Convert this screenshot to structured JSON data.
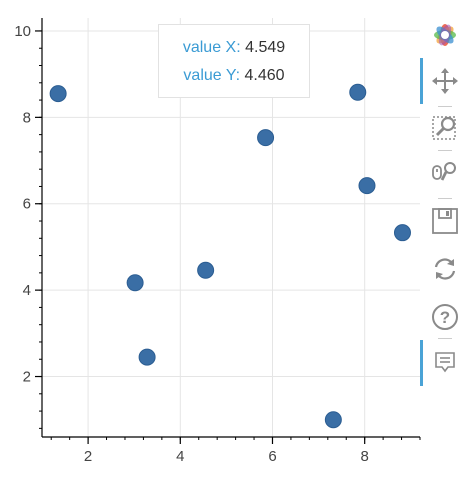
{
  "chart_data": {
    "type": "scatter",
    "title": "",
    "xlabel": "",
    "ylabel": "",
    "xlim": [
      1.0,
      9.2
    ],
    "ylim": [
      0.6,
      10.3
    ],
    "x_ticks": [
      2,
      4,
      6,
      8
    ],
    "y_ticks": [
      2,
      4,
      6,
      8,
      10
    ],
    "grid": true,
    "points": [
      {
        "x": 1.35,
        "y": 8.55
      },
      {
        "x": 3.02,
        "y": 4.17
      },
      {
        "x": 3.28,
        "y": 2.45
      },
      {
        "x": 4.55,
        "y": 4.46
      },
      {
        "x": 5.85,
        "y": 7.53
      },
      {
        "x": 7.32,
        "y": 1.0
      },
      {
        "x": 7.85,
        "y": 8.58
      },
      {
        "x": 8.05,
        "y": 6.42
      },
      {
        "x": 8.82,
        "y": 5.33
      }
    ],
    "point_color": "#3a6ea5"
  },
  "tooltip": {
    "x_label": "value X:",
    "x_value": "4.549",
    "y_label": "value Y:",
    "y_value": "4.460"
  },
  "toolbar": {
    "tools": [
      {
        "name": "bokeh-logo-icon",
        "active": false
      },
      {
        "name": "pan-icon",
        "active": true
      },
      {
        "name": "box-zoom-icon",
        "active": false
      },
      {
        "name": "wheel-zoom-icon",
        "active": false
      },
      {
        "name": "save-icon",
        "active": false
      },
      {
        "name": "reset-icon",
        "active": false
      },
      {
        "name": "help-icon",
        "active": false
      },
      {
        "name": "hover-icon",
        "active": true
      }
    ],
    "accent_color": "#4aa3d6"
  }
}
